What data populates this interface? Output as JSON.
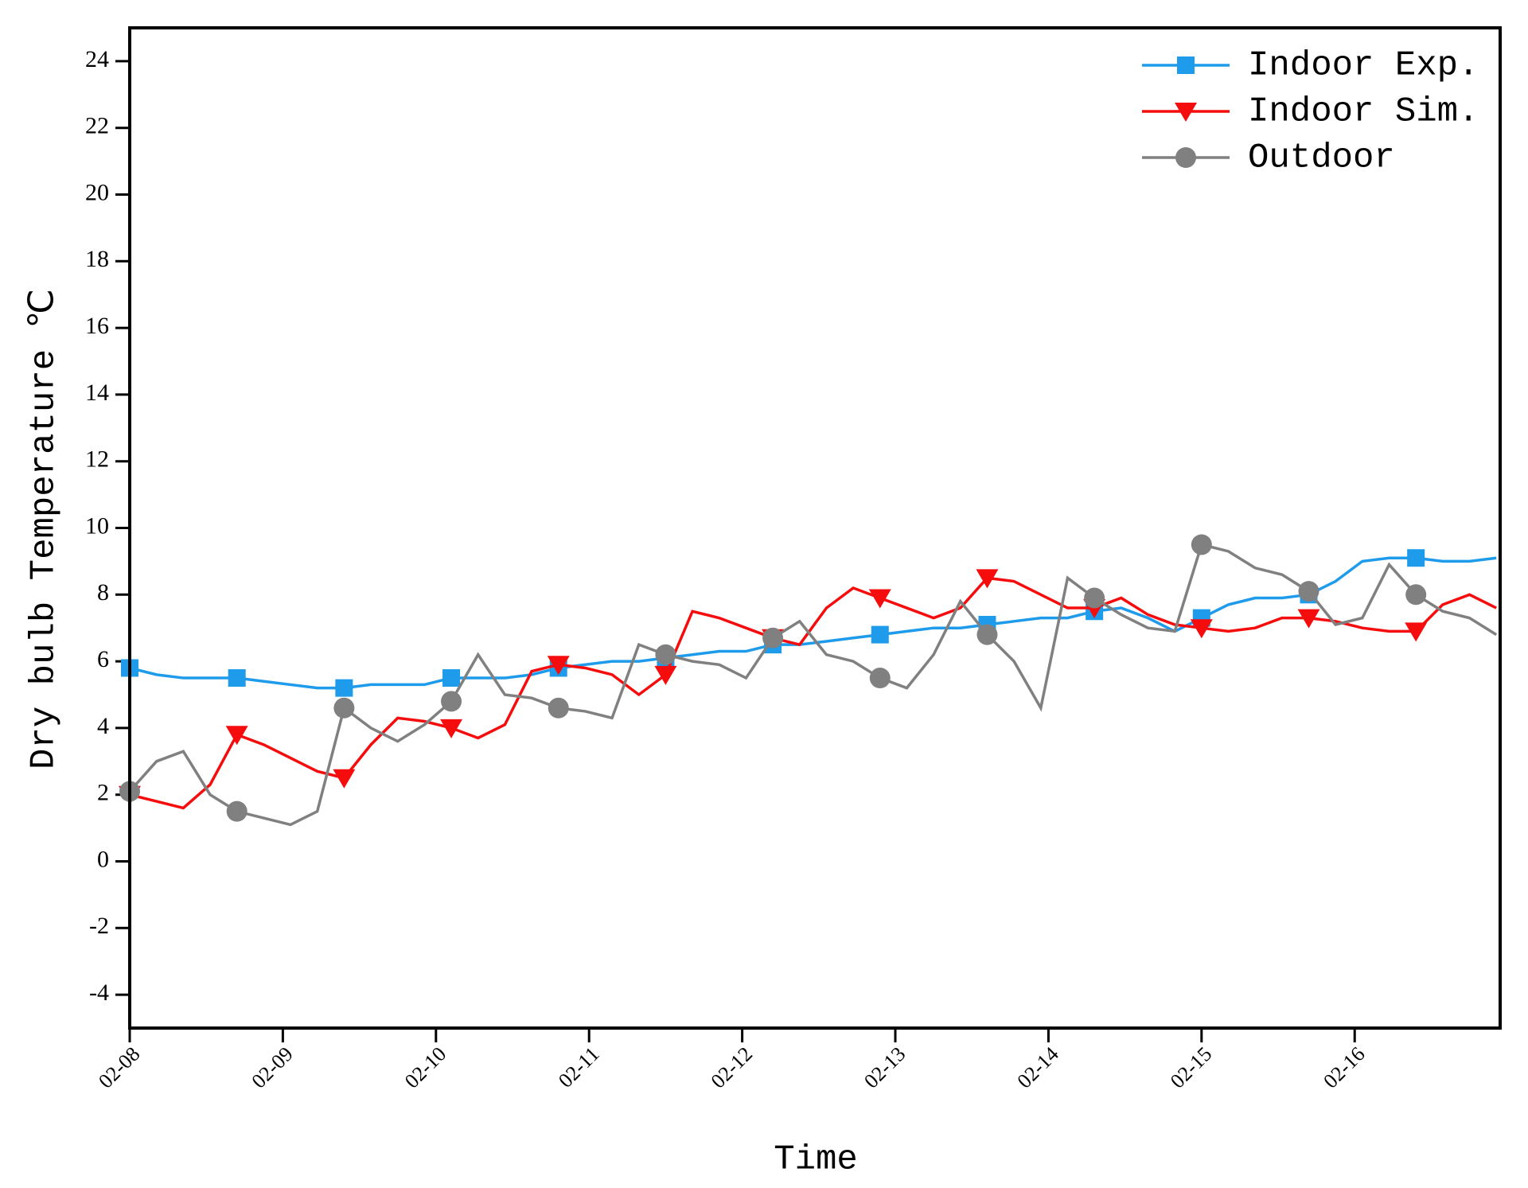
{
  "chart_data": {
    "type": "line",
    "xlabel": "Time",
    "ylabel": "Dry bulb Temperature ℃",
    "x": [
      0,
      0.175,
      0.35,
      0.525,
      0.7,
      0.875,
      1.05,
      1.225,
      1.4,
      1.575,
      1.75,
      1.925,
      2.1,
      2.275,
      2.45,
      2.625,
      2.8,
      2.975,
      3.15,
      3.325,
      3.5,
      3.675,
      3.85,
      4.025,
      4.2,
      4.375,
      4.55,
      4.725,
      4.9,
      5.075,
      5.25,
      5.425,
      5.6,
      5.775,
      5.95,
      6.125,
      6.3,
      6.475,
      6.65,
      6.825,
      7.0,
      7.175,
      7.35,
      7.525,
      7.7,
      7.875,
      8.05,
      8.225,
      8.4,
      8.575,
      8.75,
      8.925
    ],
    "xlim": [
      0,
      8.95
    ],
    "xticks": [
      {
        "value": 0,
        "label": "02-08"
      },
      {
        "value": 1,
        "label": "02-09"
      },
      {
        "value": 2,
        "label": "02-10"
      },
      {
        "value": 3,
        "label": "02-11"
      },
      {
        "value": 4,
        "label": "02-12"
      },
      {
        "value": 5,
        "label": "02-13"
      },
      {
        "value": 6,
        "label": "02-14"
      },
      {
        "value": 7,
        "label": "02-15"
      },
      {
        "value": 8,
        "label": "02-16"
      }
    ],
    "ylim": [
      -5,
      25
    ],
    "yticks": [
      -4,
      -2,
      0,
      2,
      4,
      6,
      8,
      10,
      12,
      14,
      16,
      18,
      20,
      22,
      24
    ],
    "markevery": 4,
    "legend": "upper right",
    "series": [
      {
        "name": "Indoor Exp.",
        "color": "#1e9bea",
        "marker": "square",
        "values": [
          5.8,
          5.6,
          5.5,
          5.5,
          5.5,
          5.4,
          5.3,
          5.2,
          5.2,
          5.3,
          5.3,
          5.3,
          5.5,
          5.5,
          5.5,
          5.6,
          5.8,
          5.9,
          6.0,
          6.0,
          6.1,
          6.2,
          6.3,
          6.3,
          6.5,
          6.5,
          6.6,
          6.7,
          6.8,
          6.9,
          7.0,
          7.0,
          7.1,
          7.2,
          7.3,
          7.3,
          7.5,
          7.6,
          7.3,
          6.9,
          7.3,
          7.7,
          7.9,
          7.9,
          8.0,
          8.4,
          9.0,
          9.1,
          9.1,
          9.0,
          9.0,
          9.1
        ]
      },
      {
        "name": "Indoor Sim.",
        "color": "#f50d0d",
        "marker": "triangle-down",
        "values": [
          2.0,
          1.8,
          1.6,
          2.3,
          3.8,
          3.5,
          3.1,
          2.7,
          2.5,
          3.5,
          4.3,
          4.2,
          4.0,
          3.7,
          4.1,
          5.7,
          5.9,
          5.8,
          5.6,
          5.0,
          5.6,
          7.5,
          7.3,
          7.0,
          6.7,
          6.5,
          7.6,
          8.2,
          7.9,
          7.6,
          7.3,
          7.6,
          8.5,
          8.4,
          8.0,
          7.6,
          7.6,
          7.9,
          7.4,
          7.1,
          7.0,
          6.9,
          7.0,
          7.3,
          7.3,
          7.2,
          7.0,
          6.9,
          6.9,
          7.7,
          8.0,
          7.6
        ]
      },
      {
        "name": "Outdoor",
        "color": "#808080",
        "marker": "circle",
        "values": [
          2.1,
          3.0,
          3.3,
          2.0,
          1.5,
          1.3,
          1.1,
          1.5,
          4.6,
          4.0,
          3.6,
          4.1,
          4.8,
          6.2,
          5.0,
          4.9,
          4.6,
          4.5,
          4.3,
          6.5,
          6.2,
          6.0,
          5.9,
          5.5,
          6.7,
          7.2,
          6.2,
          6.0,
          5.5,
          5.2,
          6.2,
          7.8,
          6.8,
          6.0,
          4.6,
          8.5,
          7.9,
          7.4,
          7.0,
          6.9,
          9.5,
          9.3,
          8.8,
          8.6,
          8.1,
          7.1,
          7.3,
          8.9,
          8.0,
          7.5,
          7.3,
          6.8
        ]
      }
    ]
  }
}
